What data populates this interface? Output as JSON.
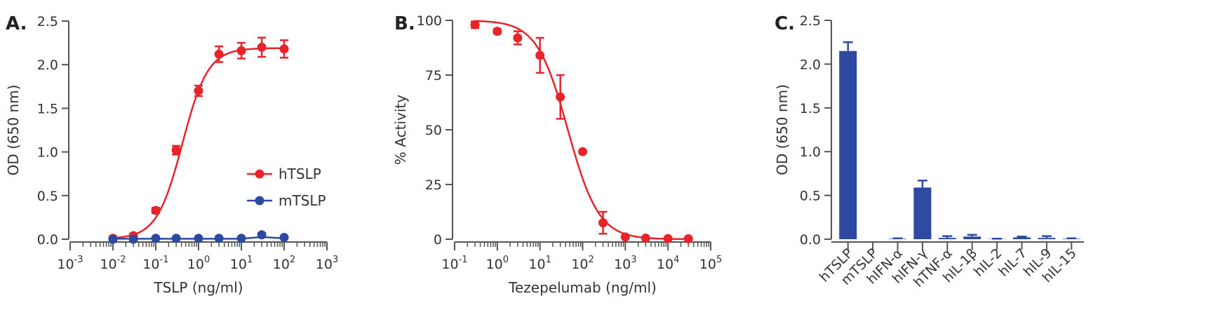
{
  "chart_data": [
    {
      "panel": "A.",
      "type": "scatter",
      "x_scale": "log10",
      "x_tick_exponents": [
        -3,
        -2,
        -1,
        0,
        1,
        2,
        3
      ],
      "xlim": [
        0.001,
        1000
      ],
      "ylim": [
        0,
        2.5
      ],
      "y_ticks": [
        "0.0",
        "0.5",
        "1.0",
        "1.5",
        "2.0",
        "2.5"
      ],
      "xlabel": "TSLP (ng/ml)",
      "ylabel": "OD (650 nm)",
      "legend_position": "center-right",
      "series": [
        {
          "name": "hTSLP",
          "color": "#e8232a",
          "marker": "circle",
          "fit": "sigmoid",
          "x": [
            0.01,
            0.03,
            0.1,
            0.3,
            1,
            3,
            10,
            30,
            100
          ],
          "y": [
            0.01,
            0.04,
            0.33,
            1.02,
            1.7,
            2.12,
            2.16,
            2.2,
            2.18
          ],
          "err": [
            0.02,
            0.02,
            0.03,
            0.05,
            0.06,
            0.09,
            0.09,
            0.11,
            0.1
          ]
        },
        {
          "name": "mTSLP",
          "color": "#2e4aa0",
          "marker": "circle",
          "fit": "flat",
          "x": [
            0.01,
            0.03,
            0.1,
            0.3,
            1,
            3,
            10,
            30,
            100
          ],
          "y": [
            0.0,
            0.0,
            0.01,
            0.01,
            0.01,
            0.01,
            0.01,
            0.05,
            0.02
          ],
          "err": [
            0.0,
            0.0,
            0.0,
            0.0,
            0.0,
            0.0,
            0.0,
            0.02,
            0.0
          ]
        }
      ]
    },
    {
      "panel": "B.",
      "type": "scatter",
      "x_scale": "log10",
      "x_tick_exponents": [
        -1,
        0,
        1,
        2,
        3,
        4,
        5
      ],
      "xlim": [
        0.1,
        100000
      ],
      "ylim": [
        0,
        100
      ],
      "y_ticks": [
        "0",
        "25",
        "50",
        "75",
        "100"
      ],
      "xlabel": "Tezepelumab (ng/ml)",
      "ylabel": "% Activity",
      "series": [
        {
          "name": "Tezepelumab",
          "color": "#e8232a",
          "marker": "circle",
          "fit": "sigmoid",
          "x": [
            0.3,
            1,
            3,
            10,
            30,
            100,
            300,
            1000,
            3000,
            10000,
            30000
          ],
          "y": [
            98,
            95,
            92,
            84,
            65,
            40,
            7.5,
            1,
            0.5,
            0.3,
            0.2
          ],
          "err": [
            1.5,
            1,
            3,
            8,
            10,
            0,
            5,
            0,
            0,
            0,
            0
          ]
        }
      ]
    },
    {
      "panel": "C.",
      "type": "bar",
      "categories": [
        "hTSLP",
        "mTSLP",
        "hIFN-α",
        "hIFN-γ",
        "hTNF-α",
        "hIL-1β",
        "hIL-2",
        "hIL-7",
        "hIL-9",
        "hIL-15"
      ],
      "values": [
        2.15,
        0.0,
        0.005,
        0.59,
        0.015,
        0.03,
        0.003,
        0.02,
        0.015,
        0.005
      ],
      "err": [
        0.1,
        0.0,
        0.005,
        0.08,
        0.02,
        0.02,
        0.003,
        0.01,
        0.02,
        0.005
      ],
      "color": "#2e4aa0",
      "ylim": [
        0,
        2.5
      ],
      "y_ticks": [
        "0.0",
        "0.5",
        "1.0",
        "1.5",
        "2.0",
        "2.5"
      ],
      "xlabel": "",
      "ylabel": "OD (650 nm)"
    }
  ]
}
